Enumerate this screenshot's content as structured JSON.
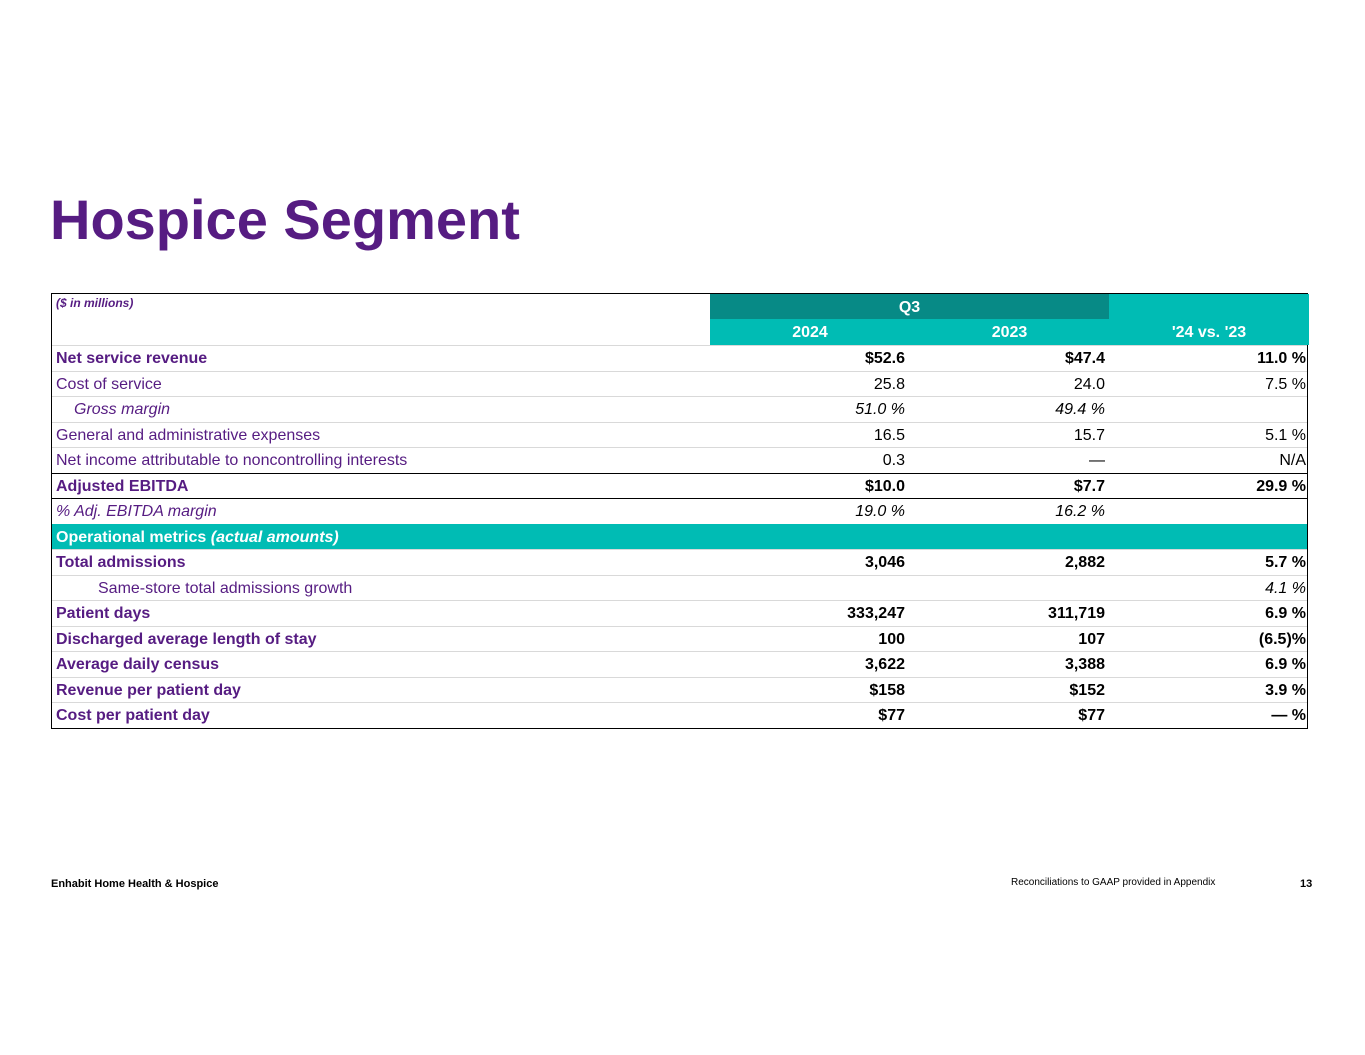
{
  "title": "Hospice Segment",
  "table": {
    "units_note": "($ in millions)",
    "period_header": "Q3",
    "columns": [
      "2024",
      "2023",
      "'24 vs. '23"
    ],
    "rows": [
      {
        "label": "Net service revenue",
        "c1": "$52.6",
        "c2": "$47.4",
        "c3": "11.0 %"
      },
      {
        "label": "Cost of service",
        "c1": "25.8",
        "c2": "24.0",
        "c3": "7.5 %"
      },
      {
        "label": "Gross margin",
        "c1": "51.0 %",
        "c2": "49.4 %",
        "c3": ""
      },
      {
        "label": "General and administrative expenses",
        "c1": "16.5",
        "c2": "15.7",
        "c3": "5.1 %"
      },
      {
        "label": "Net income attributable to noncontrolling interests",
        "c1": "0.3",
        "c2": "—",
        "c3": "N/A"
      },
      {
        "label": "Adjusted EBITDA",
        "c1": "$10.0",
        "c2": "$7.7",
        "c3": "29.9 %"
      },
      {
        "label": "% Adj. EBITDA margin",
        "c1": "19.0 %",
        "c2": "16.2 %",
        "c3": ""
      },
      {
        "label_main": "Operational metrics",
        "label_note": "(actual amounts)"
      },
      {
        "label": "Total admissions",
        "c1": "3,046",
        "c2": "2,882",
        "c3": "5.7 %"
      },
      {
        "label": "Same-store total admissions growth",
        "c1": "",
        "c2": "",
        "c3": "4.1 %"
      },
      {
        "label": "Patient days",
        "c1": "333,247",
        "c2": "311,719",
        "c3": "6.9 %"
      },
      {
        "label": "Discharged average length of stay",
        "c1": "100",
        "c2": "107",
        "c3": "(6.5)%"
      },
      {
        "label": "Average daily census",
        "c1": "3,622",
        "c2": "3,388",
        "c3": "6.9 %"
      },
      {
        "label": "Revenue per patient day",
        "c1": "$158",
        "c2": "$152",
        "c3": "3.9 %"
      },
      {
        "label": "Cost per patient day",
        "c1": "$77",
        "c2": "$77",
        "c3": "— %"
      }
    ]
  },
  "footer": {
    "company": "Enhabit Home Health & Hospice",
    "note": "Reconciliations to GAAP provided in Appendix",
    "page_number": "13"
  },
  "colors": {
    "purple": "#561c82",
    "teal": "#00bcb4",
    "dark_teal": "#078a86"
  }
}
